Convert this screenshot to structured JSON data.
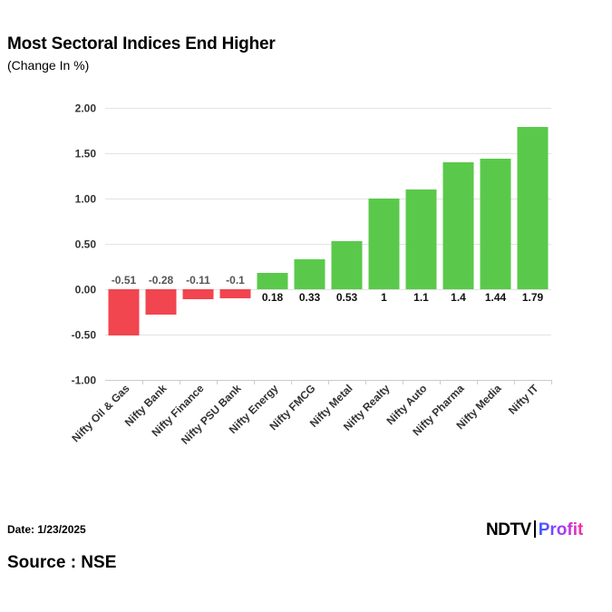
{
  "header": {
    "title": "Most Sectoral Indices End Higher",
    "subtitle": "(Change In %)"
  },
  "chart_data": {
    "type": "bar",
    "categories": [
      "Nifty Oil & Gas",
      "Nifty Bank",
      "Nifty Finance",
      "Nifty PSU Bank",
      "Nifty Energy",
      "Nifty FMCG",
      "Nifty Metal",
      "Nifty Realty",
      "Nifty Auto",
      "Nifty Pharma",
      "Nifty Media",
      "Nifty IT"
    ],
    "values": [
      -0.51,
      -0.28,
      -0.11,
      -0.1,
      0.18,
      0.33,
      0.53,
      1,
      1.1,
      1.4,
      1.44,
      1.79
    ],
    "data_labels": [
      "-0.51",
      "-0.28",
      "-0.11",
      "-0.1",
      "0.18",
      "0.33",
      "0.53",
      "1",
      "1.1",
      "1.4",
      "1.44",
      "1.79"
    ],
    "ylim": [
      -1,
      2
    ],
    "yticks": [
      2,
      1.5,
      1,
      0.5,
      0,
      -0.5,
      -1
    ],
    "ytick_labels": [
      "2.00",
      "1.50",
      "1.00",
      "0.50",
      "0.00",
      "-0.50",
      "-1.00"
    ],
    "grid": true,
    "colors": {
      "positive": "#5ac94b",
      "negative": "#f1454f"
    }
  },
  "footer": {
    "date": "Date: 1/23/2025",
    "source": "Source : NSE",
    "logo_ndtv": "NDTV",
    "logo_profit": "Profit"
  }
}
